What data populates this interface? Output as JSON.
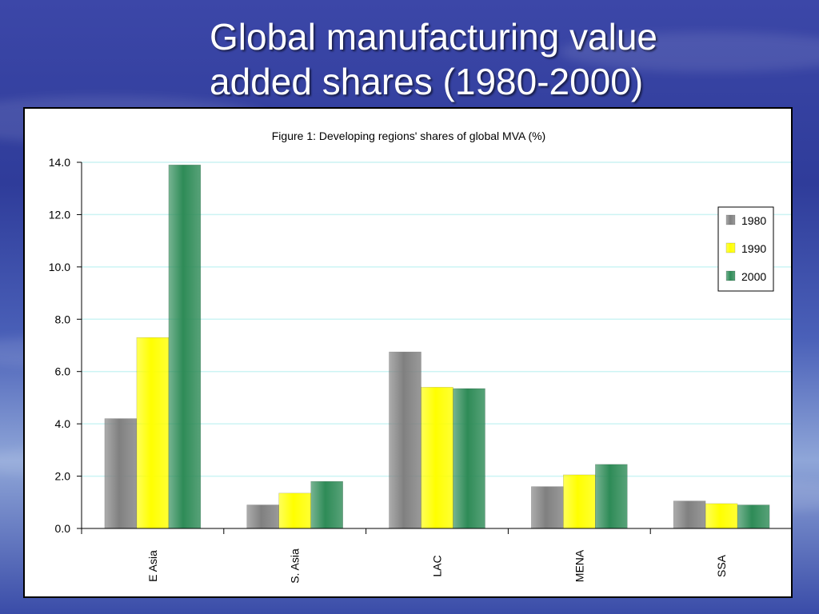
{
  "slide": {
    "title_line1": "Global manufacturing value",
    "title_line2": "added shares (1980-2000)"
  },
  "chart_data": {
    "type": "bar",
    "title": "Figure 1: Developing regions' shares of global MVA (%)",
    "categories": [
      "E Asia",
      "S. Asia",
      "LAC",
      "MENA",
      "SSA"
    ],
    "series": [
      {
        "name": "1980",
        "values": [
          4.2,
          0.9,
          6.75,
          1.6,
          1.05
        ],
        "color": "#808080"
      },
      {
        "name": "1990",
        "values": [
          7.3,
          1.35,
          5.4,
          2.05,
          0.95
        ],
        "color": "#ffff00"
      },
      {
        "name": "2000",
        "values": [
          13.9,
          1.8,
          5.35,
          2.45,
          0.9
        ],
        "color": "#2e8b57"
      }
    ],
    "y_ticks": [
      "0.0",
      "2.0",
      "4.0",
      "6.0",
      "8.0",
      "10.0",
      "12.0",
      "14.0"
    ],
    "ylim": [
      0,
      14
    ],
    "grid": true,
    "grid_color": "#ccf4f4",
    "legend_position": "right",
    "xlabel": "",
    "ylabel": ""
  }
}
